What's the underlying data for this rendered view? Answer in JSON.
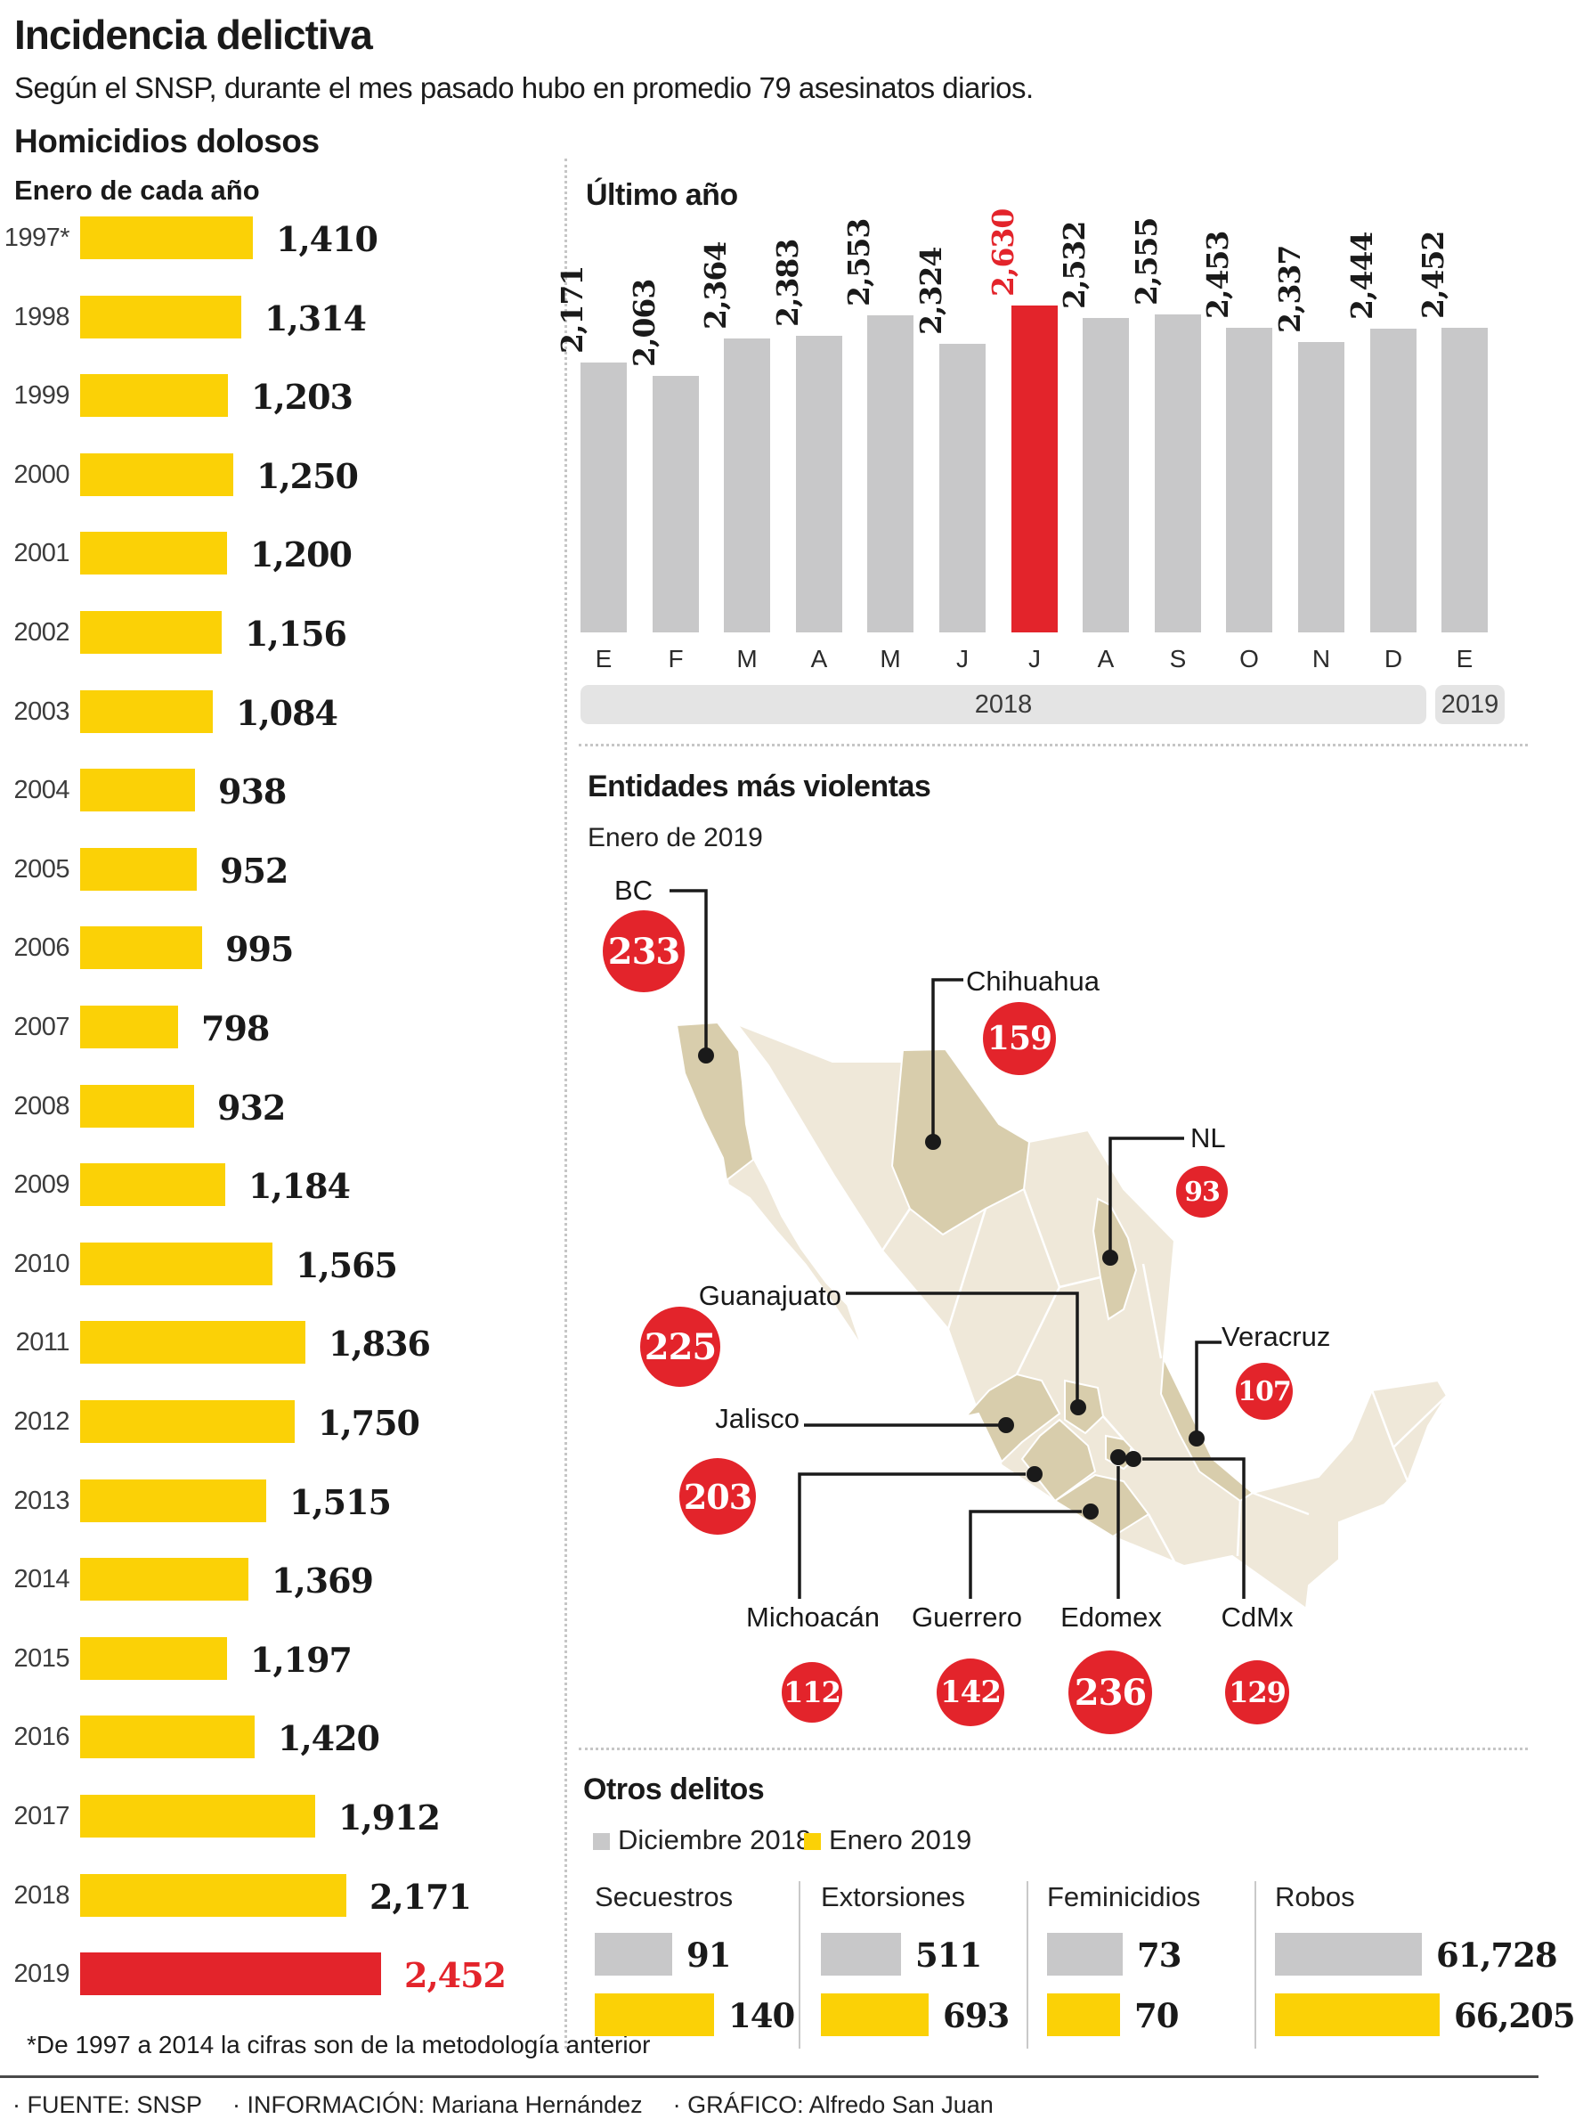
{
  "page": {
    "title": "Incidencia delictiva",
    "subtitle": "Según el SNSP, durante el mes pasado hubo en promedio 79 asesinatos diarios.",
    "section_title": "Homicidios dolosos",
    "footer_items": [
      "· FUENTE: SNSP",
      "· INFORMACIÓN: Mariana Hernández",
      "· GRÁFICO: Alfredo San Juan"
    ]
  },
  "colors": {
    "yellow": "#FBD106",
    "red": "#E3242B",
    "gray": "#C8C8C9",
    "band_gray": "#E4E4E4",
    "map_light": "#EFE8D9",
    "map_dark": "#D8CDAC",
    "ink": "#1A1A1A"
  },
  "chart_data": [
    {
      "id": "homicidios_enero",
      "type": "bar",
      "orientation": "horizontal",
      "title": "Enero de cada año",
      "categories": [
        "1997*",
        "1998",
        "1999",
        "2000",
        "2001",
        "2002",
        "2003",
        "2004",
        "2005",
        "2006",
        "2007",
        "2008",
        "2009",
        "2010",
        "2011",
        "2012",
        "2013",
        "2014",
        "2015",
        "2016",
        "2017",
        "2018",
        "2019"
      ],
      "values": [
        1410,
        1314,
        1203,
        1250,
        1200,
        1156,
        1084,
        938,
        952,
        995,
        798,
        932,
        1184,
        1565,
        1836,
        1750,
        1515,
        1369,
        1197,
        1420,
        1912,
        2171,
        2452
      ],
      "labels": [
        "1,410",
        "1,314",
        "1,203",
        "1,250",
        "1,200",
        "1,156",
        "1,084",
        "938",
        "952",
        "995",
        "798",
        "932",
        "1,184",
        "1,565",
        "1,836",
        "1,750",
        "1,515",
        "1,369",
        "1,197",
        "1,420",
        "1,912",
        "2,171",
        "2,452"
      ],
      "highlight_category": "2019",
      "xlim": [
        0,
        2452
      ],
      "footnote": "*De 1997 a 2014 la cifras son de la metodología anterior"
    },
    {
      "id": "ultimo_ano",
      "type": "bar",
      "orientation": "vertical",
      "title": "Último año",
      "categories": [
        "E",
        "F",
        "M",
        "A",
        "M",
        "J",
        "J",
        "A",
        "S",
        "O",
        "N",
        "D",
        "E"
      ],
      "values": [
        2171,
        2063,
        2364,
        2383,
        2553,
        2324,
        2630,
        2532,
        2555,
        2453,
        2337,
        2444,
        2452
      ],
      "labels": [
        "2,171",
        "2,063",
        "2,364",
        "2,383",
        "2,553",
        "2,324",
        "2,630",
        "2,532",
        "2,555",
        "2,453",
        "2,337",
        "2,444",
        "2,452"
      ],
      "highlight_index": 6,
      "ylim": [
        0,
        2630
      ],
      "year_bands": [
        "2018",
        "2019"
      ]
    },
    {
      "id": "entidades_mas_violentas",
      "type": "map",
      "title": "Entidades más violentas",
      "subtitle": "Enero de 2019",
      "points": [
        {
          "name": "BC",
          "value": 233,
          "label": "233"
        },
        {
          "name": "Chihuahua",
          "value": 159,
          "label": "159"
        },
        {
          "name": "NL",
          "value": 93,
          "label": "93"
        },
        {
          "name": "Guanajuato",
          "value": 225,
          "label": "225"
        },
        {
          "name": "Veracruz",
          "value": 107,
          "label": "107"
        },
        {
          "name": "Jalisco",
          "value": 203,
          "label": "203"
        },
        {
          "name": "Michoacán",
          "value": 112,
          "label": "112"
        },
        {
          "name": "Guerrero",
          "value": 142,
          "label": "142"
        },
        {
          "name": "Edomex",
          "value": 236,
          "label": "236"
        },
        {
          "name": "CdMx",
          "value": 129,
          "label": "129"
        }
      ]
    },
    {
      "id": "otros_delitos",
      "type": "bar_groups",
      "title": "Otros delitos",
      "legend": [
        "Diciembre 2018",
        "Enero 2019"
      ],
      "groups": [
        {
          "label": "Secuestros",
          "values": [
            91,
            140
          ],
          "labels": [
            "91",
            "140"
          ]
        },
        {
          "label": "Extorsiones",
          "values": [
            511,
            693
          ],
          "labels": [
            "511",
            "693"
          ]
        },
        {
          "label": "Feminicidios",
          "values": [
            73,
            70
          ],
          "labels": [
            "73",
            "70"
          ]
        },
        {
          "label": "Robos",
          "values": [
            61728,
            66205
          ],
          "labels": [
            "61,728",
            "66,205"
          ]
        }
      ]
    }
  ]
}
